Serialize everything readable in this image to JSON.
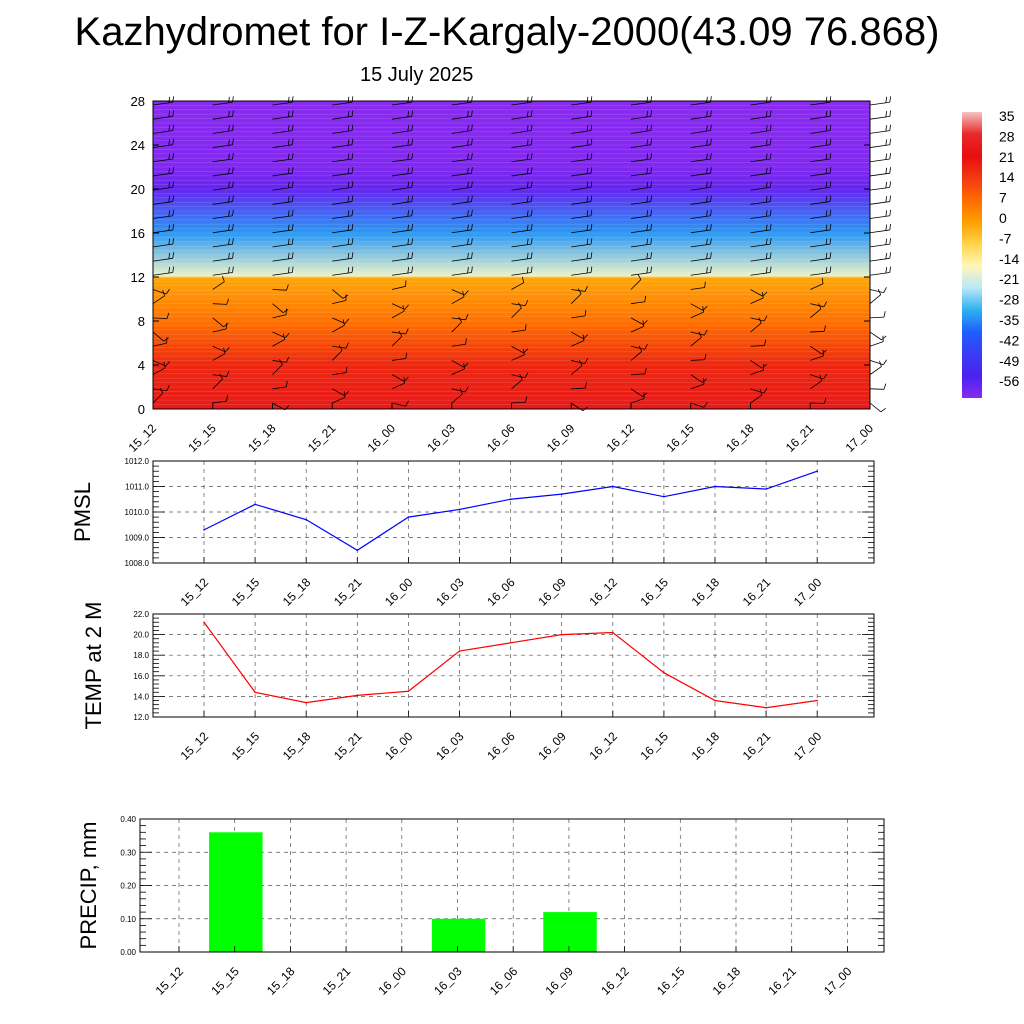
{
  "title": "Kazhydromet for I-Z-Kargaly-2000(43.09 76.868)",
  "subtitle": "15 July 2025",
  "chart_data": [
    {
      "type": "heatmap",
      "y_ticks": [
        "0",
        "4",
        "8",
        "12",
        "16",
        "20",
        "24",
        "28"
      ],
      "ylim": [
        0,
        28
      ],
      "x_ticks": [
        "15_12",
        "15_15",
        "15_18",
        "15_21",
        "16_00",
        "16_03",
        "16_06",
        "16_09",
        "16_12",
        "16_15",
        "16_18",
        "16_21",
        "17_00"
      ],
      "colorbar_labels": [
        "35",
        "28",
        "21",
        "14",
        "7",
        "0",
        "-7",
        "-14",
        "-21",
        "-28",
        "-35",
        "-42",
        "-49",
        "-56"
      ],
      "colorbar_colors": [
        "#f6c2c2",
        "#e82a2a",
        "#e80e0e",
        "#f23a12",
        "#ff6a00",
        "#ff9f00",
        "#ffd44a",
        "#fff6b8",
        "#b8e8f8",
        "#2fb0f0",
        "#1e5fff",
        "#3a3cf2",
        "#4a22f0",
        "#8a2af0"
      ],
      "levels": [
        {
          "height": 0,
          "temp": 24
        },
        {
          "height": 4,
          "temp": 17
        },
        {
          "height": 8,
          "temp": 6
        },
        {
          "height": 11.9,
          "temp": -1
        },
        {
          "height": 12.1,
          "temp": -16
        },
        {
          "height": 16,
          "temp": -30
        },
        {
          "height": 20,
          "temp": -52
        },
        {
          "height": 22,
          "temp": -55
        },
        {
          "height": 28,
          "temp": -56
        }
      ],
      "wind_barbs": "per time step and level"
    },
    {
      "type": "line",
      "ylabel": "PMSL",
      "categories": [
        "15_12",
        "15_15",
        "15_18",
        "15_21",
        "16_00",
        "16_03",
        "16_06",
        "16_09",
        "16_12",
        "16_15",
        "16_18",
        "16_21",
        "17_00"
      ],
      "values": [
        1009.3,
        1010.3,
        1009.7,
        1008.5,
        1009.8,
        1010.1,
        1010.5,
        1010.7,
        1011.0,
        1010.6,
        1011.0,
        1010.9,
        1011.6
      ],
      "ylim": [
        1008.0,
        1012.0
      ],
      "y_ticks": [
        "1008.0",
        "1009.0",
        "1010.0",
        "1011.0",
        "1012.0"
      ],
      "color": "#0000ff",
      "grid": true
    },
    {
      "type": "line",
      "ylabel": "TEMP at 2 M",
      "categories": [
        "15_12",
        "15_15",
        "15_18",
        "15_21",
        "16_00",
        "16_03",
        "16_06",
        "16_09",
        "16_12",
        "16_15",
        "16_18",
        "16_21",
        "17_00"
      ],
      "values": [
        21.2,
        14.4,
        13.4,
        14.1,
        14.5,
        18.4,
        19.2,
        20.0,
        20.2,
        16.3,
        13.6,
        12.9,
        13.6
      ],
      "ylim": [
        12.0,
        22.0
      ],
      "y_ticks": [
        "12.0",
        "14.0",
        "16.0",
        "18.0",
        "20.0",
        "22.0"
      ],
      "color": "#ff0000",
      "grid": true
    },
    {
      "type": "bar",
      "ylabel": "PRECIP, mm",
      "categories": [
        "15_12",
        "15_15",
        "15_18",
        "15_21",
        "16_00",
        "16_03",
        "16_06",
        "16_09",
        "16_12",
        "16_15",
        "16_18",
        "16_21",
        "17_00"
      ],
      "values": [
        0,
        0.36,
        0,
        0,
        0,
        0.1,
        0,
        0.12,
        0,
        0,
        0,
        0,
        0
      ],
      "ylim": [
        0,
        0.4
      ],
      "y_ticks": [
        "0.00",
        "0.10",
        "0.20",
        "0.30",
        "0.40"
      ],
      "color": "#00ff00",
      "grid": true
    }
  ]
}
